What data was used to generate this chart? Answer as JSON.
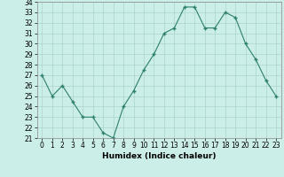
{
  "x": [
    0,
    1,
    2,
    3,
    4,
    5,
    6,
    7,
    8,
    9,
    10,
    11,
    12,
    13,
    14,
    15,
    16,
    17,
    18,
    19,
    20,
    21,
    22,
    23
  ],
  "y": [
    27,
    25,
    26,
    24.5,
    23,
    23,
    21.5,
    21,
    24,
    25.5,
    27.5,
    29,
    31,
    31.5,
    33.5,
    33.5,
    31.5,
    31.5,
    33,
    32.5,
    30,
    28.5,
    26.5,
    25
  ],
  "xlabel": "Humidex (Indice chaleur)",
  "ylim": [
    21,
    34
  ],
  "xlim": [
    -0.5,
    23.5
  ],
  "yticks": [
    21,
    22,
    23,
    24,
    25,
    26,
    27,
    28,
    29,
    30,
    31,
    32,
    33,
    34
  ],
  "xticks": [
    0,
    1,
    2,
    3,
    4,
    5,
    6,
    7,
    8,
    9,
    10,
    11,
    12,
    13,
    14,
    15,
    16,
    17,
    18,
    19,
    20,
    21,
    22,
    23
  ],
  "line_color": "#2d7f6e",
  "bg_color": "#cceee8",
  "grid_color": "#aad4ce",
  "label_fontsize": 6.5,
  "tick_fontsize": 5.5
}
